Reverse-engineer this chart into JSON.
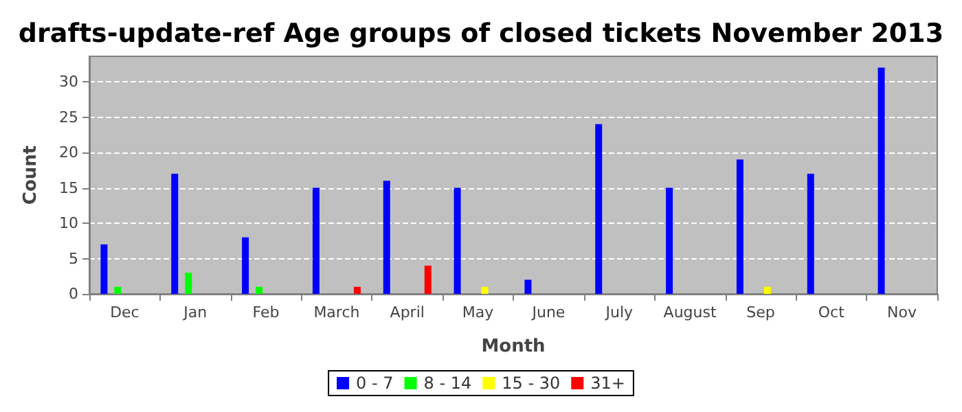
{
  "chart_data": {
    "type": "bar",
    "title": "drafts-update-ref Age groups of closed tickets November 2013",
    "xlabel": "Month",
    "ylabel": "Count",
    "categories": [
      "Dec",
      "Jan",
      "Feb",
      "March",
      "April",
      "May",
      "June",
      "July",
      "August",
      "Sep",
      "Oct",
      "Nov"
    ],
    "series": [
      {
        "name": "0 - 7",
        "color": "#0000ff",
        "values": [
          7,
          17,
          8,
          15,
          16,
          15,
          2,
          24,
          15,
          19,
          17,
          32
        ]
      },
      {
        "name": "8 - 14",
        "color": "#00ff00",
        "values": [
          1,
          3,
          1,
          0,
          0,
          0,
          0,
          0,
          0,
          0,
          0,
          0
        ]
      },
      {
        "name": "15 - 30",
        "color": "#ffff00",
        "values": [
          0,
          0,
          0,
          0,
          0,
          1,
          0,
          0,
          0,
          1,
          0,
          0
        ]
      },
      {
        "name": "31+",
        "color": "#ff0000",
        "values": [
          0,
          0,
          0,
          1,
          4,
          0,
          0,
          0,
          0,
          0,
          0,
          0
        ]
      }
    ],
    "ylim": [
      0,
      33.6
    ],
    "yticks": [
      0,
      5,
      10,
      15,
      20,
      25,
      30
    ],
    "grid": "y",
    "legend": "bottom"
  }
}
